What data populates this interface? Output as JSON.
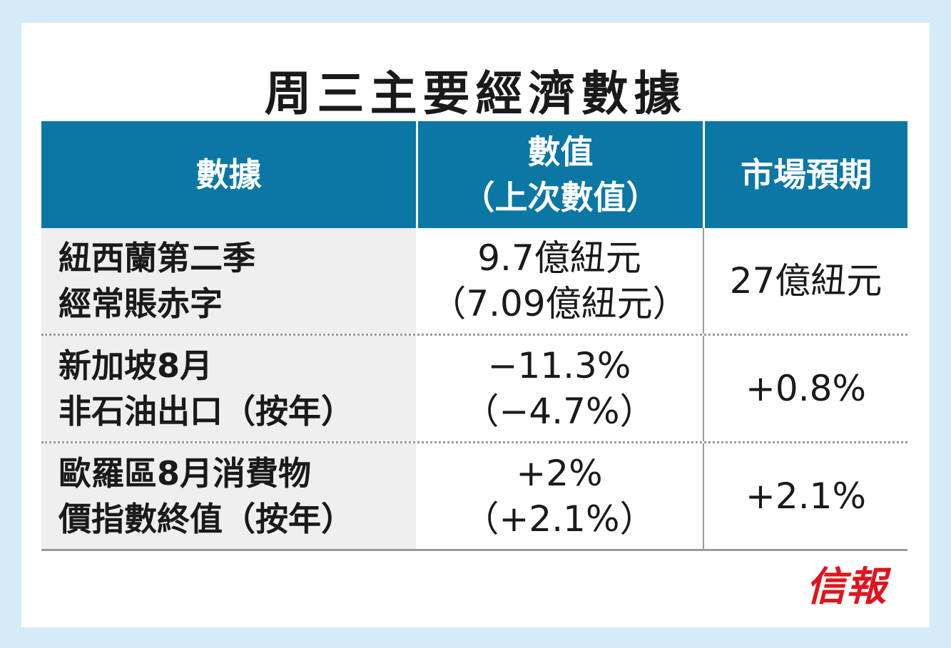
{
  "title": "周三主要經濟數據",
  "table": {
    "header": [
      [
        "數據"
      ],
      [
        "數值",
        "（上次數值）"
      ],
      [
        "市場預期"
      ]
    ],
    "rows": [
      [
        [
          "紐西蘭第二季",
          "經常賬赤字"
        ],
        [
          "9.7億紐元",
          "（7.09億紐元）"
        ],
        [
          "27億紐元"
        ]
      ],
      [
        [
          "新加坡8月",
          "非石油出口（按年）"
        ],
        [
          "−11.3%",
          "（−4.7%）"
        ],
        [
          "+0.8%"
        ]
      ],
      [
        [
          "歐羅區8月消費物",
          "價指數終值（按年）"
        ],
        [
          "+2%",
          "（+2.1%）"
        ],
        [
          "+2.1%"
        ]
      ]
    ]
  },
  "logo": "信報"
}
